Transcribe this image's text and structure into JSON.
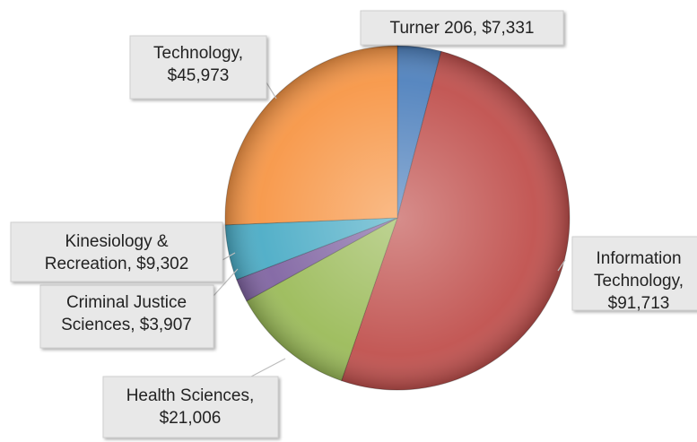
{
  "chart_data": {
    "type": "pie",
    "values": [
      7331,
      91713,
      21006,
      3907,
      9302,
      45973
    ],
    "value_labels": [
      [
        "Turner 206, $7,331"
      ],
      [
        "Information",
        "Technology,",
        "$91,713"
      ],
      [
        "Health Sciences,",
        "$21,006"
      ],
      [
        "Criminal Justice",
        "Sciences, $3,907"
      ],
      [
        "Kinesiology &",
        "Recreation, $9,302"
      ],
      [
        "Technology,",
        "$45,973"
      ]
    ],
    "colors": [
      "#4f81bd",
      "#c0504d",
      "#9bbb59",
      "#8064a2",
      "#4bacc6",
      "#f79646"
    ]
  }
}
